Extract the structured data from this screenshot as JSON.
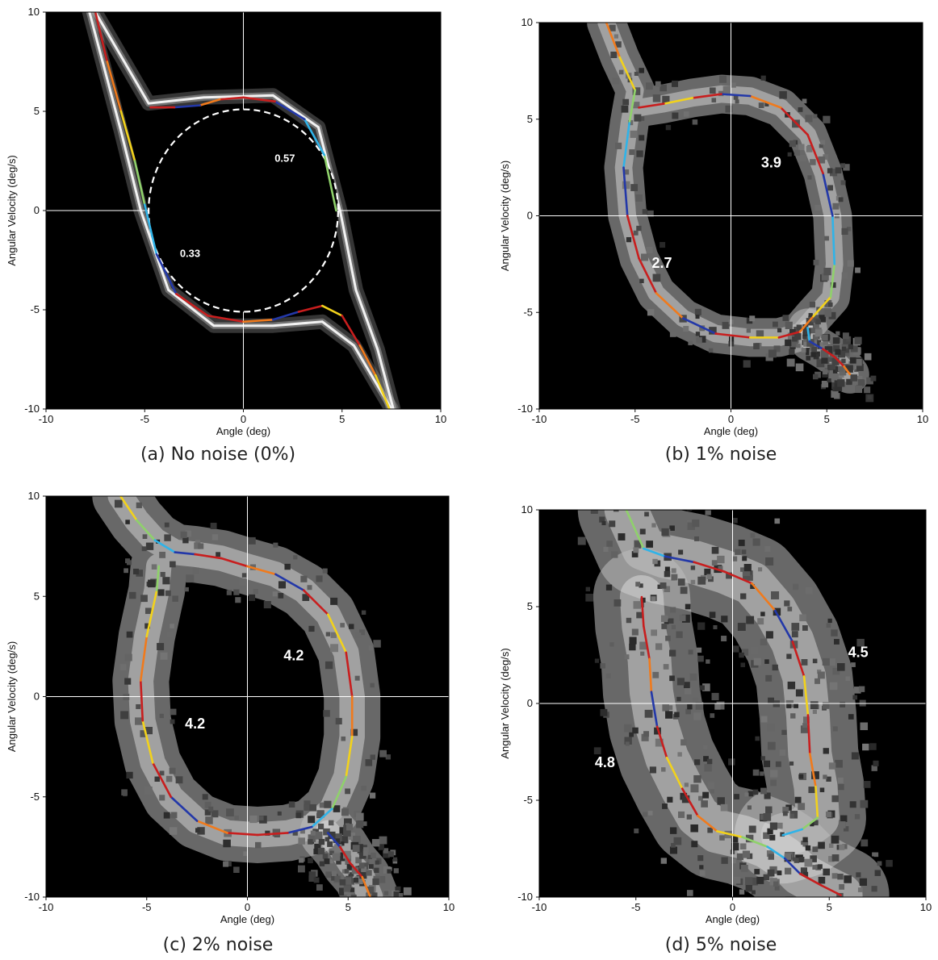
{
  "figure": {
    "panels": [
      {
        "caption": "(a)   No noise (0%)"
      },
      {
        "caption": "(b)   1% noise"
      },
      {
        "caption": "(c)   2% noise"
      },
      {
        "caption": "(d)   5% noise"
      }
    ]
  },
  "chart_data": [
    {
      "type": "heatmap",
      "caption": "(a)   No noise (0%)",
      "xlabel": "Angle (deg)",
      "ylabel": "Angular Velocity (deg/s)",
      "xlim": [
        -10,
        10
      ],
      "ylim": [
        -10,
        10
      ],
      "xticks": [
        -10,
        -5,
        0,
        5,
        10
      ],
      "yticks": [
        -10,
        -5,
        0,
        5,
        10
      ],
      "noise_percent": 0,
      "crosshair": {
        "x": 0,
        "y": 0
      },
      "reference_circle": {
        "rx": 4.8,
        "ry": 5.1
      },
      "annotations": [
        {
          "text": "0.57",
          "x": 2.1,
          "y": 2.6
        },
        {
          "text": "0.33",
          "x": -2.7,
          "y": -2.2
        }
      ],
      "trajectory": [
        [
          -7.5,
          10
        ],
        [
          -6.9,
          7.5
        ],
        [
          -6.2,
          5
        ],
        [
          -5.5,
          2.5
        ],
        [
          -5.0,
          0.3
        ],
        [
          -4.4,
          -2.2
        ],
        [
          -3.4,
          -4.2
        ],
        [
          -1.8,
          -5.3
        ],
        [
          0,
          -5.6
        ],
        [
          1.5,
          -5.5
        ],
        [
          2.8,
          -5.1
        ],
        [
          4.0,
          -4.8
        ],
        [
          5.0,
          -5.3
        ],
        [
          5.9,
          -6.8
        ],
        [
          6.7,
          -8.3
        ],
        [
          7.4,
          -10
        ]
      ],
      "trajectory_upper": [
        [
          4.7,
          0
        ],
        [
          4.1,
          2.8
        ],
        [
          3.1,
          4.6
        ],
        [
          1.6,
          5.5
        ],
        [
          0,
          5.7
        ],
        [
          -1.2,
          5.6
        ],
        [
          -2.2,
          5.3
        ],
        [
          -3.5,
          5.2
        ],
        [
          -4.7,
          5.2
        ]
      ]
    },
    {
      "type": "heatmap",
      "caption": "(b)   1% noise",
      "xlabel": "Angle (deg)",
      "ylabel": "Angular Velocity (deg/s)",
      "xlim": [
        -10,
        10
      ],
      "ylim": [
        -10,
        10
      ],
      "xticks": [
        -10,
        -5,
        0,
        5,
        10
      ],
      "yticks": [
        -10,
        -5,
        0,
        5,
        10
      ],
      "noise_percent": 1,
      "crosshair": {
        "x": 0,
        "y": 0
      },
      "annotations": [
        {
          "text": "3.9",
          "x": 2.1,
          "y": 2.7
        },
        {
          "text": "2.7",
          "x": -3.6,
          "y": -2.5
        }
      ],
      "trajectory": [
        [
          -6.5,
          10
        ],
        [
          -5.8,
          8.2
        ],
        [
          -5.0,
          6.5
        ],
        [
          -5.3,
          4.8
        ],
        [
          -5.6,
          2.5
        ],
        [
          -5.4,
          0
        ],
        [
          -4.8,
          -2.2
        ],
        [
          -3.9,
          -4.0
        ],
        [
          -2.5,
          -5.3
        ],
        [
          -0.8,
          -6.1
        ],
        [
          1.0,
          -6.3
        ],
        [
          2.5,
          -6.3
        ],
        [
          3.6,
          -6.0
        ],
        [
          4.3,
          -5.2
        ],
        [
          5.2,
          -4.2
        ],
        [
          5.4,
          -2.5
        ],
        [
          5.3,
          0
        ],
        [
          4.8,
          2.2
        ],
        [
          4.0,
          4.2
        ],
        [
          2.6,
          5.6
        ],
        [
          1.0,
          6.2
        ],
        [
          -0.5,
          6.3
        ],
        [
          -2.0,
          6.1
        ],
        [
          -3.5,
          5.8
        ],
        [
          -4.8,
          5.6
        ]
      ],
      "trajectory_lower_tail": [
        [
          4.0,
          -5.8
        ],
        [
          4.1,
          -6.5
        ],
        [
          4.8,
          -6.9
        ],
        [
          5.4,
          -7.3
        ],
        [
          5.9,
          -7.8
        ],
        [
          6.2,
          -8.2
        ]
      ]
    },
    {
      "type": "heatmap",
      "caption": "(c)   2% noise",
      "xlabel": "Angle (deg)",
      "ylabel": "Angular Velocity (deg/s)",
      "xlim": [
        -10,
        10
      ],
      "ylim": [
        -10,
        10
      ],
      "xticks": [
        -10,
        -5,
        0,
        5,
        10
      ],
      "yticks": [
        -10,
        -5,
        0,
        5,
        10
      ],
      "noise_percent": 2,
      "crosshair": {
        "x": 0,
        "y": 0
      },
      "annotations": [
        {
          "text": "4.2",
          "x": 2.3,
          "y": 2.0
        },
        {
          "text": "4.2",
          "x": -2.6,
          "y": -1.4
        }
      ],
      "trajectory": [
        [
          -6.3,
          10
        ],
        [
          -5.5,
          8.8
        ],
        [
          -4.6,
          7.8
        ],
        [
          -3.6,
          7.2
        ],
        [
          -2.6,
          7.1
        ],
        [
          -1.3,
          6.9
        ],
        [
          0,
          6.5
        ],
        [
          1.4,
          6.1
        ],
        [
          2.8,
          5.3
        ],
        [
          4.0,
          4.1
        ],
        [
          4.9,
          2.2
        ],
        [
          5.2,
          0
        ],
        [
          5.2,
          -2.0
        ],
        [
          4.9,
          -4.0
        ],
        [
          4.2,
          -5.6
        ],
        [
          3.2,
          -6.5
        ],
        [
          2.0,
          -6.8
        ],
        [
          0.5,
          -6.9
        ],
        [
          -1.0,
          -6.8
        ],
        [
          -2.5,
          -6.2
        ],
        [
          -3.8,
          -5.0
        ],
        [
          -4.7,
          -3.3
        ],
        [
          -5.2,
          -1.2
        ],
        [
          -5.3,
          0.8
        ],
        [
          -5.0,
          3.0
        ],
        [
          -4.5,
          5.3
        ],
        [
          -4.4,
          6.5
        ]
      ],
      "trajectory_lower_tail": [
        [
          4.0,
          -6.8
        ],
        [
          4.6,
          -7.5
        ],
        [
          5.1,
          -8.3
        ],
        [
          5.7,
          -9.0
        ],
        [
          6.1,
          -10
        ]
      ]
    },
    {
      "type": "heatmap",
      "caption": "(d)   5% noise",
      "xlabel": "Angle (deg)",
      "ylabel": "Angular Velocity (deg/s)",
      "xlim": [
        -10,
        10
      ],
      "ylim": [
        -10,
        10
      ],
      "xticks": [
        -10,
        -5,
        0,
        5,
        10
      ],
      "yticks": [
        -10,
        -5,
        0,
        5,
        10
      ],
      "noise_percent": 5,
      "crosshair": {
        "x": 0,
        "y": 0
      },
      "annotations": [
        {
          "text": "4.5",
          "x": 6.5,
          "y": 2.6
        },
        {
          "text": "4.8",
          "x": -6.6,
          "y": -3.1
        }
      ],
      "trajectory": [
        [
          -5.5,
          10
        ],
        [
          -4.6,
          8.0
        ],
        [
          -3.5,
          7.6
        ],
        [
          -2.0,
          7.3
        ],
        [
          -0.4,
          6.8
        ],
        [
          1.0,
          6.2
        ],
        [
          2.2,
          4.8
        ],
        [
          3.1,
          3.2
        ],
        [
          3.7,
          1.4
        ],
        [
          3.9,
          -0.6
        ],
        [
          4.0,
          -2.6
        ],
        [
          4.3,
          -4.3
        ],
        [
          4.4,
          -5.9
        ],
        [
          3.6,
          -6.5
        ],
        [
          2.6,
          -6.8
        ]
      ],
      "trajectory_lower": [
        [
          -4.7,
          5.5
        ],
        [
          -4.6,
          4.0
        ],
        [
          -4.3,
          2.3
        ],
        [
          -4.2,
          0.6
        ],
        [
          -3.9,
          -1.2
        ],
        [
          -3.4,
          -2.8
        ],
        [
          -2.6,
          -4.4
        ],
        [
          -1.8,
          -5.8
        ],
        [
          -0.8,
          -6.6
        ],
        [
          0.5,
          -6.9
        ],
        [
          1.8,
          -7.4
        ],
        [
          2.7,
          -8.0
        ],
        [
          3.5,
          -8.8
        ],
        [
          4.6,
          -9.4
        ],
        [
          5.6,
          -9.9
        ]
      ]
    }
  ]
}
